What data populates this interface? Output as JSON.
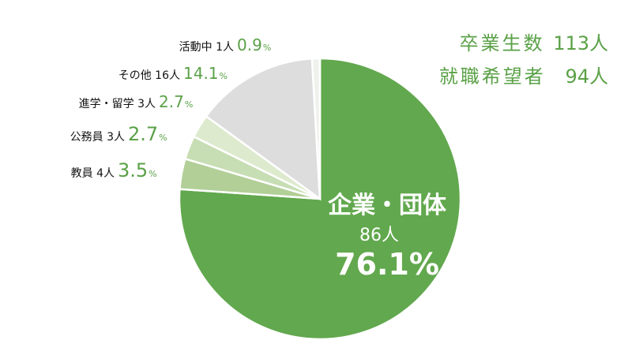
{
  "chart_data": {
    "type": "pie",
    "total_label": "卒業生数",
    "total_value": "113人",
    "employ_label": "就職希望者",
    "employ_value": "94人",
    "slices": [
      {
        "name": "企業・団体",
        "count": "86人",
        "percent": 76.1,
        "percent_label": "76.1%",
        "color": "#62a84e"
      },
      {
        "name": "教員",
        "count": "4人",
        "percent": 3.5,
        "percent_label": "3.5",
        "color": "#b2cf97"
      },
      {
        "name": "公務員",
        "count": "3人",
        "percent": 2.7,
        "percent_label": "2.7",
        "color": "#c7ddb4"
      },
      {
        "name": "進学・留学",
        "count": "3人",
        "percent": 2.7,
        "percent_label": "2.7",
        "color": "#ddeacd"
      },
      {
        "name": "その他",
        "count": "16人",
        "percent": 14.1,
        "percent_label": "14.1",
        "color": "#dddddd"
      },
      {
        "name": "活動中",
        "count": "1人",
        "percent": 0.9,
        "percent_label": "0.9",
        "color": "#eff2ec"
      }
    ],
    "percent_sign": "%",
    "label_color": "#111111",
    "value_color": "#5aa147"
  }
}
